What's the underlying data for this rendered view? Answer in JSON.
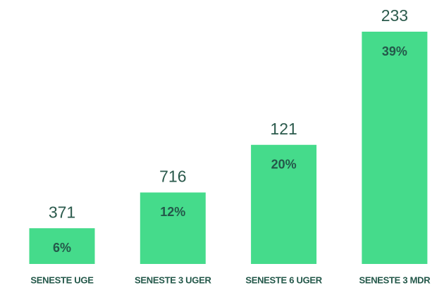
{
  "chart_data": {
    "type": "bar",
    "categories": [
      "SENESTE UGE",
      "SENESTE 3 UGER",
      "SENESTE 6 UGER",
      "SENESTE 3 MDR"
    ],
    "values": [
      6,
      12,
      20,
      39
    ],
    "value_labels": [
      "6%",
      "12%",
      "20%",
      "39%"
    ],
    "counts": [
      371,
      716,
      121,
      233
    ],
    "color": "#45db8b"
  }
}
